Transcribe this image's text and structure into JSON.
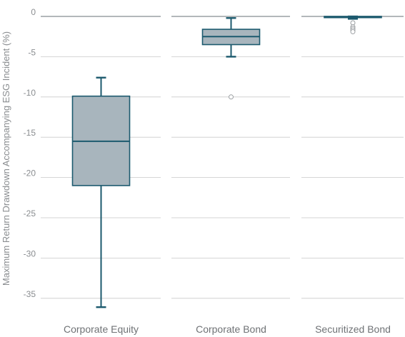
{
  "chart_data": {
    "type": "box",
    "ylabel": "Maximum Return Drawdown Accompanying ESG Incident (%)",
    "ylim": [
      -36.5,
      0
    ],
    "yticks": [
      0,
      -5,
      -10,
      -15,
      -20,
      -25,
      -30,
      -35
    ],
    "ytick_labels": [
      "0",
      "-5",
      "-10",
      "-15",
      "-20",
      "-25",
      "-30",
      "-35"
    ],
    "grid": true,
    "categories": [
      "Corporate Equity",
      "Corporate Bond",
      "Securitized Bond"
    ],
    "boxes": [
      {
        "name": "Corporate Equity",
        "whisker_high": -7.6,
        "q3": -9.9,
        "median": -15.5,
        "q1": -21.0,
        "whisker_low": -36.1,
        "outliers": []
      },
      {
        "name": "Corporate Bond",
        "whisker_high": -0.2,
        "q3": -1.6,
        "median": -2.5,
        "q1": -3.5,
        "whisker_low": -5.0,
        "outliers": [
          -10.0
        ]
      },
      {
        "name": "Securitized Bond",
        "whisker_high": 0.0,
        "q3": 0.0,
        "median": -0.1,
        "q1": -0.15,
        "whisker_low": -0.3,
        "outliers": [
          -0.8,
          -1.3,
          -1.5,
          -1.7,
          -1.9
        ]
      }
    ],
    "colors": {
      "box_fill": "#a8b5bd",
      "box_stroke": "#1c5a6e",
      "grid": "#c9c9c9",
      "zero_line": "#9aa0a4"
    }
  }
}
